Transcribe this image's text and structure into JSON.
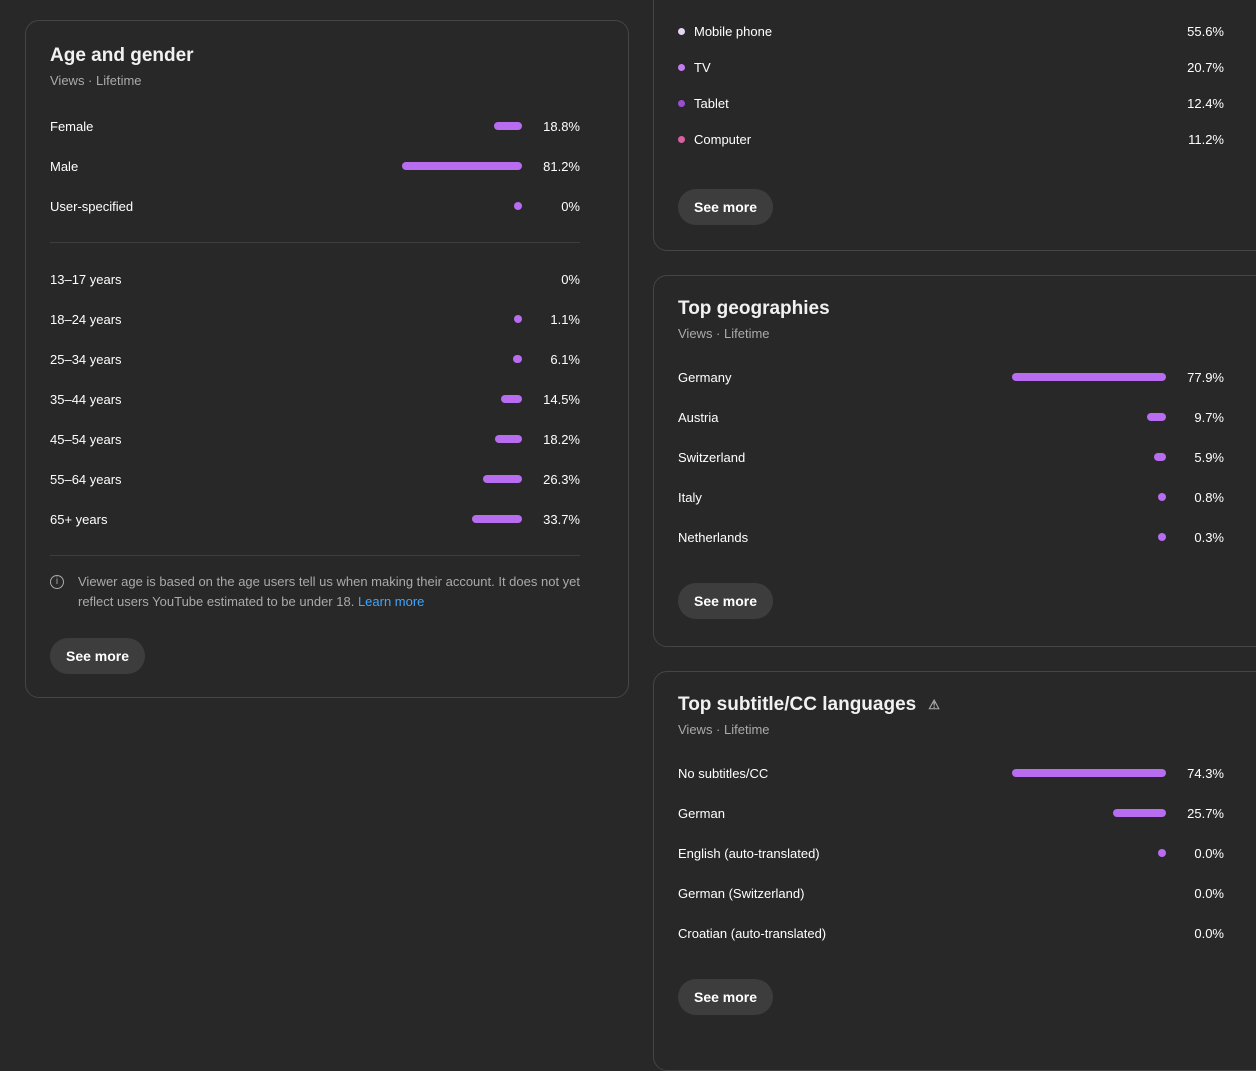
{
  "accent": "#b86cf0",
  "age_gender": {
    "title": "Age and gender",
    "subtitle": "Views · Lifetime",
    "gender": [
      {
        "label": "Female",
        "value": 18.8,
        "text": "18.8%",
        "dot": true
      },
      {
        "label": "Male",
        "value": 81.2,
        "text": "81.2%",
        "dot": true
      },
      {
        "label": "User-specified",
        "value": 0,
        "text": "0%",
        "dot": true
      }
    ],
    "age": [
      {
        "label": "13–17 years",
        "value": 0,
        "text": "0%",
        "dot": false
      },
      {
        "label": "18–24 years",
        "value": 1.1,
        "text": "1.1%",
        "dot": true
      },
      {
        "label": "25–34 years",
        "value": 6.1,
        "text": "6.1%",
        "dot": true
      },
      {
        "label": "35–44 years",
        "value": 14.5,
        "text": "14.5%",
        "dot": true
      },
      {
        "label": "45–54 years",
        "value": 18.2,
        "text": "18.2%",
        "dot": true
      },
      {
        "label": "55–64 years",
        "value": 26.3,
        "text": "26.3%",
        "dot": true
      },
      {
        "label": "65+ years",
        "value": 33.7,
        "text": "33.7%",
        "dot": true
      }
    ],
    "note": "Viewer age is based on the age users tell us when making their account. It does not yet reflect users YouTube estimated to be under 18.",
    "learn_more": "Learn more",
    "see_more": "See more"
  },
  "devices": {
    "items": [
      {
        "label": "Mobile phone",
        "text": "55.6%",
        "color": "#e6d3f5"
      },
      {
        "label": "TV",
        "text": "20.7%",
        "color": "#c27cf0"
      },
      {
        "label": "Tablet",
        "text": "12.4%",
        "color": "#9b4fd0"
      },
      {
        "label": "Computer",
        "text": "11.2%",
        "color": "#d9609f"
      }
    ],
    "see_more": "See more"
  },
  "geographies": {
    "title": "Top geographies",
    "subtitle": "Views · Lifetime",
    "items": [
      {
        "label": "Germany",
        "value": 77.9,
        "text": "77.9%",
        "dot": true
      },
      {
        "label": "Austria",
        "value": 9.7,
        "text": "9.7%",
        "dot": true
      },
      {
        "label": "Switzerland",
        "value": 5.9,
        "text": "5.9%",
        "dot": true
      },
      {
        "label": "Italy",
        "value": 0.8,
        "text": "0.8%",
        "dot": true
      },
      {
        "label": "Netherlands",
        "value": 0.3,
        "text": "0.3%",
        "dot": true
      }
    ],
    "see_more": "See more"
  },
  "subtitles": {
    "title": "Top subtitle/CC languages",
    "warning_icon": "warning-icon",
    "subtitle": "Views · Lifetime",
    "items": [
      {
        "label": "No subtitles/CC",
        "value": 74.3,
        "text": "74.3%",
        "dot": true
      },
      {
        "label": "German",
        "value": 25.7,
        "text": "25.7%",
        "dot": true
      },
      {
        "label": "English (auto-translated)",
        "value": 0.0,
        "text": "0.0%",
        "dot": true
      },
      {
        "label": "German (Switzerland)",
        "value": 0.0,
        "text": "0.0%",
        "dot": false
      },
      {
        "label": "Croatian (auto-translated)",
        "value": 0.0,
        "text": "0.0%",
        "dot": false
      }
    ],
    "see_more": "See more"
  }
}
